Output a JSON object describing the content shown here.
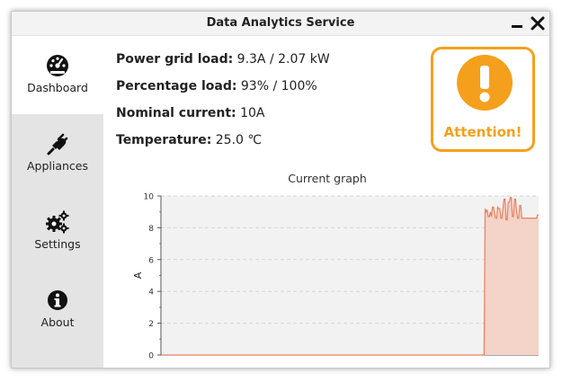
{
  "window": {
    "title": "Data Analytics Service"
  },
  "sidebar": {
    "items": [
      {
        "label": "Dashboard",
        "icon": "dashboard-gauge-icon",
        "active": true
      },
      {
        "label": "Appliances",
        "icon": "plug-icon",
        "active": false
      },
      {
        "label": "Settings",
        "icon": "gears-icon",
        "active": false
      },
      {
        "label": "About",
        "icon": "info-circle-icon",
        "active": false
      }
    ]
  },
  "stats": {
    "power_label": "Power grid load:",
    "power_value": "9.3A / 2.07 kW",
    "percent_label": "Percentage load:",
    "percent_value": "93% / 100%",
    "nominal_label": "Nominal current:",
    "nominal_value": "10A",
    "temperature_label": "Temperature:",
    "temperature_value": "25.0 ℃"
  },
  "attention": {
    "label": "Attention!",
    "icon": "exclamation-icon"
  },
  "colors": {
    "accent_orange": "#f5a01c",
    "graph_line": "#e8805e",
    "graph_fill": "#f4d3c8",
    "sidebar_bg": "#e4e4e4"
  },
  "chart_data": {
    "type": "area",
    "title": "Current graph",
    "xlabel": "",
    "ylabel": "A",
    "ylim": [
      0,
      10
    ],
    "yticks": [
      "0",
      "2",
      "4",
      "6",
      "8",
      "10"
    ],
    "grid": true,
    "series": [
      {
        "values": [
          0,
          0,
          0,
          0,
          0,
          0,
          0,
          0,
          0,
          0,
          0,
          0,
          0,
          0,
          0,
          0,
          0,
          0,
          0,
          0,
          0,
          0,
          0,
          0,
          0,
          0,
          0,
          0,
          0,
          0,
          0,
          0,
          0,
          0,
          0,
          0,
          0,
          0,
          0,
          0,
          0,
          0,
          0,
          0,
          0,
          0,
          0,
          0,
          0,
          0,
          0,
          0,
          0,
          0,
          0,
          0,
          0,
          0,
          0,
          0,
          0,
          0,
          0,
          0,
          0,
          0,
          0,
          0,
          0,
          0,
          0,
          0,
          0,
          0,
          0,
          0,
          0,
          0,
          0,
          0,
          0,
          0,
          0,
          0,
          0,
          0,
          0,
          0,
          0,
          0,
          0,
          0,
          0,
          0,
          0,
          0,
          0,
          0,
          0,
          0,
          0,
          0,
          0,
          0,
          0,
          0,
          0,
          0,
          0,
          0,
          0,
          0,
          0,
          0,
          0,
          0,
          0,
          0,
          0,
          0,
          0,
          0,
          0,
          0,
          0,
          0,
          0,
          0,
          0,
          0,
          0,
          0,
          0,
          0,
          0,
          0,
          0,
          0,
          0,
          0,
          0,
          0,
          0,
          0,
          0,
          0,
          0,
          0,
          0,
          0,
          0,
          0,
          0,
          0,
          0,
          0,
          0,
          0,
          0,
          0,
          0,
          0,
          0,
          0,
          0,
          0,
          0,
          0,
          0,
          0,
          0,
          0,
          0,
          0,
          0,
          0,
          0,
          0,
          0,
          0,
          0,
          0,
          0,
          0,
          0,
          0,
          0,
          0,
          0,
          0,
          0,
          0,
          0,
          0,
          0,
          0,
          0,
          0,
          0,
          0,
          0,
          0,
          0,
          0,
          0,
          0,
          0,
          0,
          0,
          0,
          0,
          0,
          0,
          0,
          0,
          0,
          0,
          0,
          0,
          0,
          0,
          0,
          0,
          0,
          0,
          0,
          0,
          0,
          0,
          0,
          0,
          0,
          0,
          0,
          0,
          0,
          0,
          0,
          0,
          0,
          0,
          0,
          0,
          0,
          0,
          0,
          0,
          0,
          0,
          0,
          0,
          0,
          0,
          0,
          0,
          0,
          0,
          0,
          0,
          0,
          0,
          0,
          0,
          0,
          0,
          0,
          0,
          0,
          0,
          0,
          0,
          0,
          0,
          0,
          0,
          0,
          0,
          0,
          0,
          0,
          0,
          0,
          0,
          0,
          0,
          0,
          0,
          0,
          0,
          0,
          0,
          0,
          0,
          0,
          0,
          0,
          0,
          0,
          0,
          0,
          0,
          0,
          0,
          0,
          0,
          0,
          0,
          0,
          0,
          9.2,
          9.0,
          9.1,
          8.7,
          8.7,
          9.0,
          8.7,
          9.3,
          9.3,
          8.9,
          8.6,
          8.6,
          9.3,
          9.2,
          9.2,
          8.6,
          8.6,
          9.2,
          9.8,
          9.8,
          8.5,
          8.5,
          9.6,
          9.6,
          9.9,
          9.9,
          8.7,
          8.7,
          9.8,
          9.8,
          9.0,
          8.6,
          8.6,
          9.4,
          9.4,
          8.6,
          8.6,
          8.6,
          8.6,
          8.6,
          8.6,
          8.6,
          8.6,
          8.6,
          8.6,
          8.6,
          8.6,
          8.6,
          8.6,
          8.6,
          8.8,
          8.8
        ]
      }
    ]
  }
}
